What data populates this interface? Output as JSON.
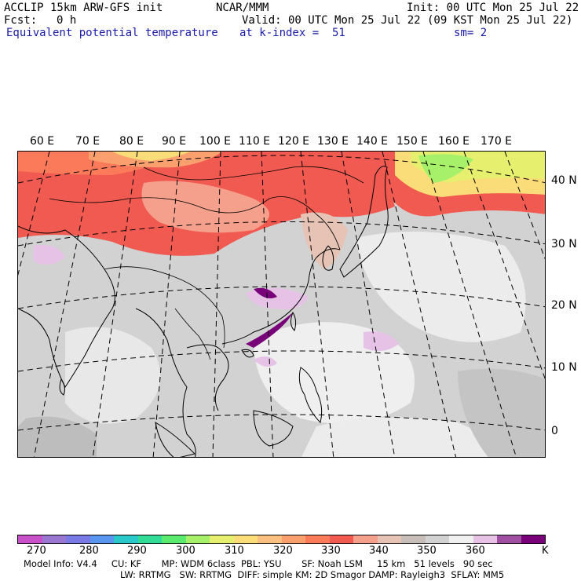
{
  "header": {
    "model": "ACCLIP 15km ARW-GFS init",
    "center": "NCAR/MMM",
    "init": "Init: 00 UTC Mon 25 Jul 22",
    "fcst_label": "Fcst:",
    "fcst_value": "0 h",
    "valid": "Valid: 00 UTC Mon 25 Jul 22 (09 KST Mon 25 Jul 22)",
    "field": "Equivalent potential temperature",
    "level": "at k-index =  51",
    "smooth": "sm= 2"
  },
  "map": {
    "lon_labels": [
      "60 E",
      "70 E",
      "80 E",
      "90 E",
      "100 E",
      "110 E",
      "120 E",
      "130 E",
      "140 E",
      "150 E",
      "160 E",
      "170 E"
    ],
    "lat_labels": [
      "40 N",
      "30 N",
      "20 N",
      "10 N",
      "0"
    ]
  },
  "colorbar": {
    "colors": [
      "#c850c8",
      "#9a78d2",
      "#7a7ae6",
      "#5a96f0",
      "#2ac8c8",
      "#32dc96",
      "#5aeb6e",
      "#a6f06a",
      "#e6f06e",
      "#fadc78",
      "#fac080",
      "#faa06e",
      "#fa7a5a",
      "#f05a50",
      "#f4a08c",
      "#e6c3b4",
      "#c8beb9",
      "#d2d2d2",
      "#f0f0f0",
      "#e6c3e6",
      "#a050a0",
      "#780078"
    ],
    "ticks": [
      "270",
      "280",
      "290",
      "300",
      "310",
      "320",
      "330",
      "340",
      "350",
      "360",
      "K"
    ],
    "units": "K"
  },
  "footer": {
    "line1": "Model Info: V4.4     CU: KF       MP: WDM 6class  PBL: YSU       SF: Noah LSM     15 km   51 levels   90 sec",
    "line2": "LW: RRTMG   SW: RRTMG  DIFF: simple KM: 2D Smagor DAMP: Rayleigh3  SFLAY: MM5"
  }
}
